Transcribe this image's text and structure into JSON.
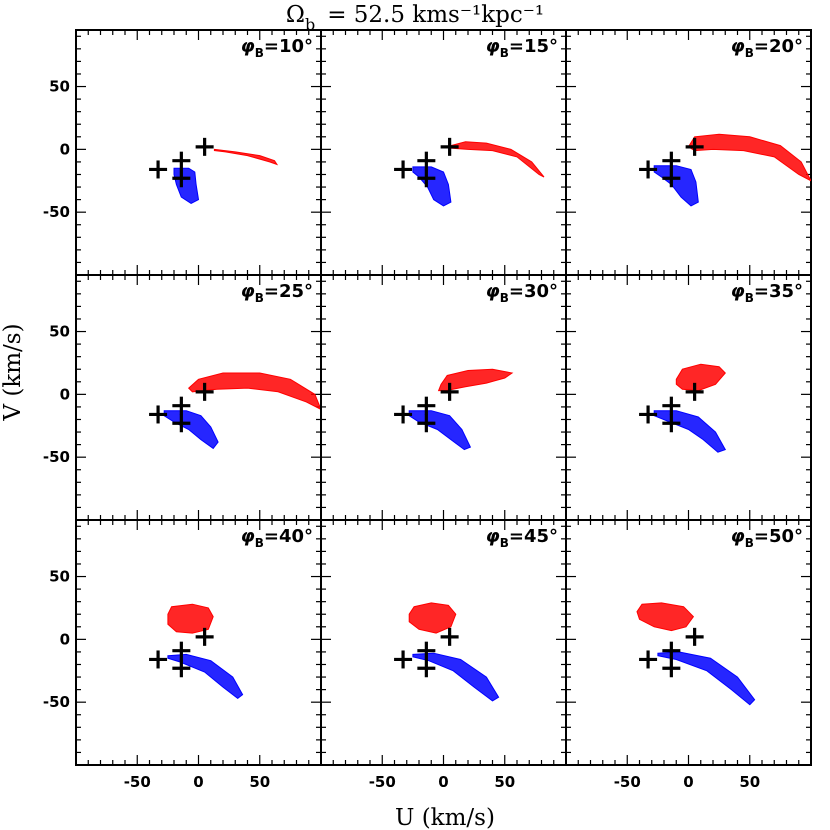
{
  "chart_data": {
    "type": "scatter",
    "title_omega": "Ω",
    "title_sub": "b",
    "title_rest": "= 52.5  kms⁻¹kpc⁻¹",
    "xlabel": "U (km/s)",
    "ylabel": "V (km/s)",
    "xlim": [
      -100,
      100
    ],
    "ylim": [
      -100,
      95
    ],
    "xticks": [
      -50,
      0,
      50
    ],
    "yticks": [
      -50,
      0,
      50
    ],
    "colors": {
      "red": "#ff0000",
      "blue": "#0000ff",
      "cross": "#000000"
    },
    "crosses": [
      {
        "x": -33,
        "y": -16
      },
      {
        "x": -14,
        "y": -9
      },
      {
        "x": -14,
        "y": -23
      },
      {
        "x": 5,
        "y": 2
      }
    ],
    "panels": [
      {
        "label_prefix": "φ",
        "label_sub": "B",
        "label_value": "=10°",
        "red": [
          [
            13,
            0
          ],
          [
            30,
            -2
          ],
          [
            50,
            -5
          ],
          [
            62,
            -9
          ],
          [
            64,
            -12
          ],
          [
            58,
            -10
          ],
          [
            40,
            -5
          ],
          [
            22,
            -2
          ],
          [
            13,
            -1
          ]
        ],
        "blue": [
          [
            -20,
            -15
          ],
          [
            -8,
            -15
          ],
          [
            -3,
            -18
          ],
          [
            -2,
            -28
          ],
          [
            0,
            -40
          ],
          [
            -6,
            -43
          ],
          [
            -14,
            -38
          ],
          [
            -18,
            -28
          ],
          [
            -20,
            -20
          ]
        ]
      },
      {
        "label_prefix": "φ",
        "label_sub": "B",
        "label_value": "=15°",
        "red": [
          [
            6,
            3
          ],
          [
            18,
            6
          ],
          [
            35,
            5
          ],
          [
            55,
            0
          ],
          [
            72,
            -10
          ],
          [
            82,
            -22
          ],
          [
            78,
            -20
          ],
          [
            60,
            -6
          ],
          [
            40,
            -1
          ],
          [
            20,
            0
          ],
          [
            6,
            1
          ]
        ],
        "blue": [
          [
            -25,
            -14
          ],
          [
            -10,
            -14
          ],
          [
            0,
            -18
          ],
          [
            4,
            -28
          ],
          [
            6,
            -42
          ],
          [
            0,
            -45
          ],
          [
            -8,
            -40
          ],
          [
            -13,
            -30
          ],
          [
            -20,
            -22
          ],
          [
            -25,
            -18
          ]
        ]
      },
      {
        "label_prefix": "φ",
        "label_sub": "B",
        "label_value": "=20°",
        "red": [
          [
            0,
            2
          ],
          [
            5,
            10
          ],
          [
            25,
            12
          ],
          [
            50,
            10
          ],
          [
            75,
            3
          ],
          [
            92,
            -10
          ],
          [
            100,
            -25
          ],
          [
            90,
            -20
          ],
          [
            70,
            -6
          ],
          [
            45,
            -1
          ],
          [
            20,
            0
          ],
          [
            5,
            -1
          ]
        ],
        "blue": [
          [
            -28,
            -13
          ],
          [
            -10,
            -13
          ],
          [
            2,
            -16
          ],
          [
            6,
            -26
          ],
          [
            8,
            -42
          ],
          [
            2,
            -45
          ],
          [
            -6,
            -38
          ],
          [
            -14,
            -28
          ],
          [
            -22,
            -22
          ],
          [
            -28,
            -18
          ]
        ]
      },
      {
        "label_prefix": "φ",
        "label_sub": "B",
        "label_value": "=25°",
        "red": [
          [
            -8,
            5
          ],
          [
            0,
            12
          ],
          [
            20,
            17
          ],
          [
            50,
            17
          ],
          [
            75,
            12
          ],
          [
            95,
            0
          ],
          [
            100,
            -12
          ],
          [
            88,
            -6
          ],
          [
            65,
            2
          ],
          [
            40,
            5
          ],
          [
            15,
            4
          ],
          [
            -5,
            2
          ]
        ],
        "blue": [
          [
            -28,
            -13
          ],
          [
            -10,
            -13
          ],
          [
            2,
            -17
          ],
          [
            10,
            -26
          ],
          [
            16,
            -38
          ],
          [
            12,
            -43
          ],
          [
            2,
            -36
          ],
          [
            -8,
            -28
          ],
          [
            -20,
            -22
          ],
          [
            -28,
            -17
          ]
        ]
      },
      {
        "label_prefix": "φ",
        "label_sub": "B",
        "label_value": "=30°",
        "red": [
          [
            -2,
            8
          ],
          [
            3,
            15
          ],
          [
            20,
            19
          ],
          [
            40,
            20
          ],
          [
            56,
            17
          ],
          [
            50,
            13
          ],
          [
            35,
            9
          ],
          [
            18,
            6
          ],
          [
            2,
            3
          ],
          [
            -4,
            3
          ]
        ],
        "blue": [
          [
            -28,
            -13
          ],
          [
            -10,
            -13
          ],
          [
            5,
            -17
          ],
          [
            15,
            -28
          ],
          [
            22,
            -42
          ],
          [
            17,
            -44
          ],
          [
            6,
            -36
          ],
          [
            -5,
            -28
          ],
          [
            -20,
            -22
          ],
          [
            -28,
            -17
          ]
        ]
      },
      {
        "label_prefix": "φ",
        "label_sub": "B",
        "label_value": "=35°",
        "red": [
          [
            -10,
            12
          ],
          [
            -5,
            20
          ],
          [
            10,
            24
          ],
          [
            25,
            22
          ],
          [
            30,
            17
          ],
          [
            22,
            8
          ],
          [
            8,
            3
          ],
          [
            -5,
            4
          ],
          [
            -10,
            8
          ]
        ],
        "blue": [
          [
            -28,
            -13
          ],
          [
            -10,
            -13
          ],
          [
            8,
            -18
          ],
          [
            22,
            -30
          ],
          [
            30,
            -44
          ],
          [
            24,
            -46
          ],
          [
            12,
            -36
          ],
          [
            0,
            -28
          ],
          [
            -18,
            -21
          ],
          [
            -28,
            -17
          ]
        ]
      },
      {
        "label_prefix": "φ",
        "label_sub": "B",
        "label_value": "=40°",
        "red": [
          [
            -25,
            20
          ],
          [
            -22,
            26
          ],
          [
            -5,
            28
          ],
          [
            8,
            25
          ],
          [
            12,
            18
          ],
          [
            8,
            8
          ],
          [
            -5,
            5
          ],
          [
            -18,
            6
          ],
          [
            -25,
            12
          ]
        ],
        "blue": [
          [
            -25,
            -13
          ],
          [
            -10,
            -12
          ],
          [
            10,
            -17
          ],
          [
            28,
            -30
          ],
          [
            36,
            -44
          ],
          [
            32,
            -47
          ],
          [
            20,
            -38
          ],
          [
            5,
            -26
          ],
          [
            -15,
            -18
          ],
          [
            -25,
            -15
          ]
        ]
      },
      {
        "label_prefix": "φ",
        "label_sub": "B",
        "label_value": "=45°",
        "red": [
          [
            -28,
            20
          ],
          [
            -24,
            26
          ],
          [
            -10,
            29
          ],
          [
            4,
            27
          ],
          [
            10,
            20
          ],
          [
            6,
            10
          ],
          [
            -6,
            5
          ],
          [
            -20,
            8
          ],
          [
            -28,
            14
          ]
        ],
        "blue": [
          [
            -25,
            -12
          ],
          [
            -8,
            -11
          ],
          [
            14,
            -16
          ],
          [
            35,
            -30
          ],
          [
            45,
            -46
          ],
          [
            40,
            -49
          ],
          [
            25,
            -38
          ],
          [
            8,
            -25
          ],
          [
            -12,
            -17
          ],
          [
            -25,
            -14
          ]
        ]
      },
      {
        "label_prefix": "φ",
        "label_sub": "B",
        "label_value": "=50°",
        "red": [
          [
            -42,
            22
          ],
          [
            -38,
            28
          ],
          [
            -22,
            29
          ],
          [
            -4,
            26
          ],
          [
            4,
            18
          ],
          [
            -2,
            10
          ],
          [
            -14,
            7
          ],
          [
            -28,
            10
          ],
          [
            -40,
            16
          ]
        ],
        "blue": [
          [
            -25,
            -11
          ],
          [
            -8,
            -10
          ],
          [
            18,
            -15
          ],
          [
            40,
            -30
          ],
          [
            54,
            -48
          ],
          [
            50,
            -52
          ],
          [
            35,
            -40
          ],
          [
            15,
            -25
          ],
          [
            -10,
            -16
          ],
          [
            -25,
            -13
          ]
        ]
      }
    ]
  }
}
